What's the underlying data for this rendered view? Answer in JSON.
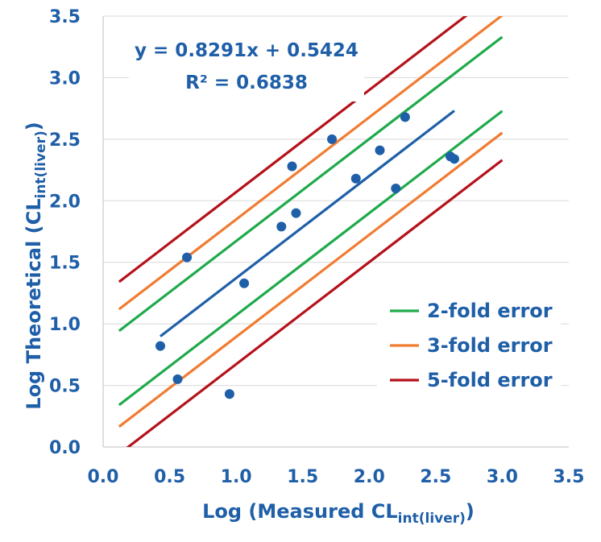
{
  "chart_data": {
    "type": "scatter",
    "xlabel": {
      "main": "Log (Measured CL",
      "sub": "int(liver)",
      "close": ")"
    },
    "ylabel": {
      "main": "Log Theoretical (CL",
      "sub": "int(liver)",
      "close": ")"
    },
    "xlim": [
      0.0,
      3.5
    ],
    "ylim": [
      0.0,
      3.5
    ],
    "xticks": [
      "0.0",
      "0.5",
      "1.0",
      "1.5",
      "2.0",
      "2.5",
      "3.0",
      "3.5"
    ],
    "yticks": [
      "0.0",
      "0.5",
      "1.0",
      "1.5",
      "2.0",
      "2.5",
      "3.0",
      "3.5"
    ],
    "grid": "horizontal",
    "points": [
      {
        "x": 0.43,
        "y": 0.82
      },
      {
        "x": 0.56,
        "y": 0.55
      },
      {
        "x": 0.63,
        "y": 1.54
      },
      {
        "x": 0.95,
        "y": 0.43
      },
      {
        "x": 1.06,
        "y": 1.33
      },
      {
        "x": 1.34,
        "y": 1.79
      },
      {
        "x": 1.42,
        "y": 2.28
      },
      {
        "x": 1.45,
        "y": 1.9
      },
      {
        "x": 1.72,
        "y": 2.5
      },
      {
        "x": 1.9,
        "y": 2.18
      },
      {
        "x": 2.08,
        "y": 2.41
      },
      {
        "x": 2.2,
        "y": 2.1
      },
      {
        "x": 2.27,
        "y": 2.68
      },
      {
        "x": 2.61,
        "y": 2.36
      },
      {
        "x": 2.64,
        "y": 2.34
      }
    ],
    "regression": {
      "slope": 0.8291,
      "intercept": 0.5424,
      "x_range": [
        0.43,
        2.64
      ],
      "equation": "y = 0.8291x + 0.5424",
      "r2": "R² = 0.6838"
    },
    "fold_lines": [
      {
        "name": "2-fold error",
        "fold": 2,
        "color": "#1faa4b"
      },
      {
        "name": "3-fold error",
        "fold": 3,
        "color": "#f07c32"
      },
      {
        "name": "5-fold error",
        "fold": 5,
        "color": "#b5121b"
      }
    ],
    "fold_x_range": [
      0.12,
      3.0
    ],
    "colors": {
      "points": "#1f5fa8",
      "regression": "#1f5fa8",
      "axis_text": "#1f5fa8",
      "grid": "#d9d9d9"
    },
    "legend": {
      "placement": "bottom-right"
    }
  }
}
